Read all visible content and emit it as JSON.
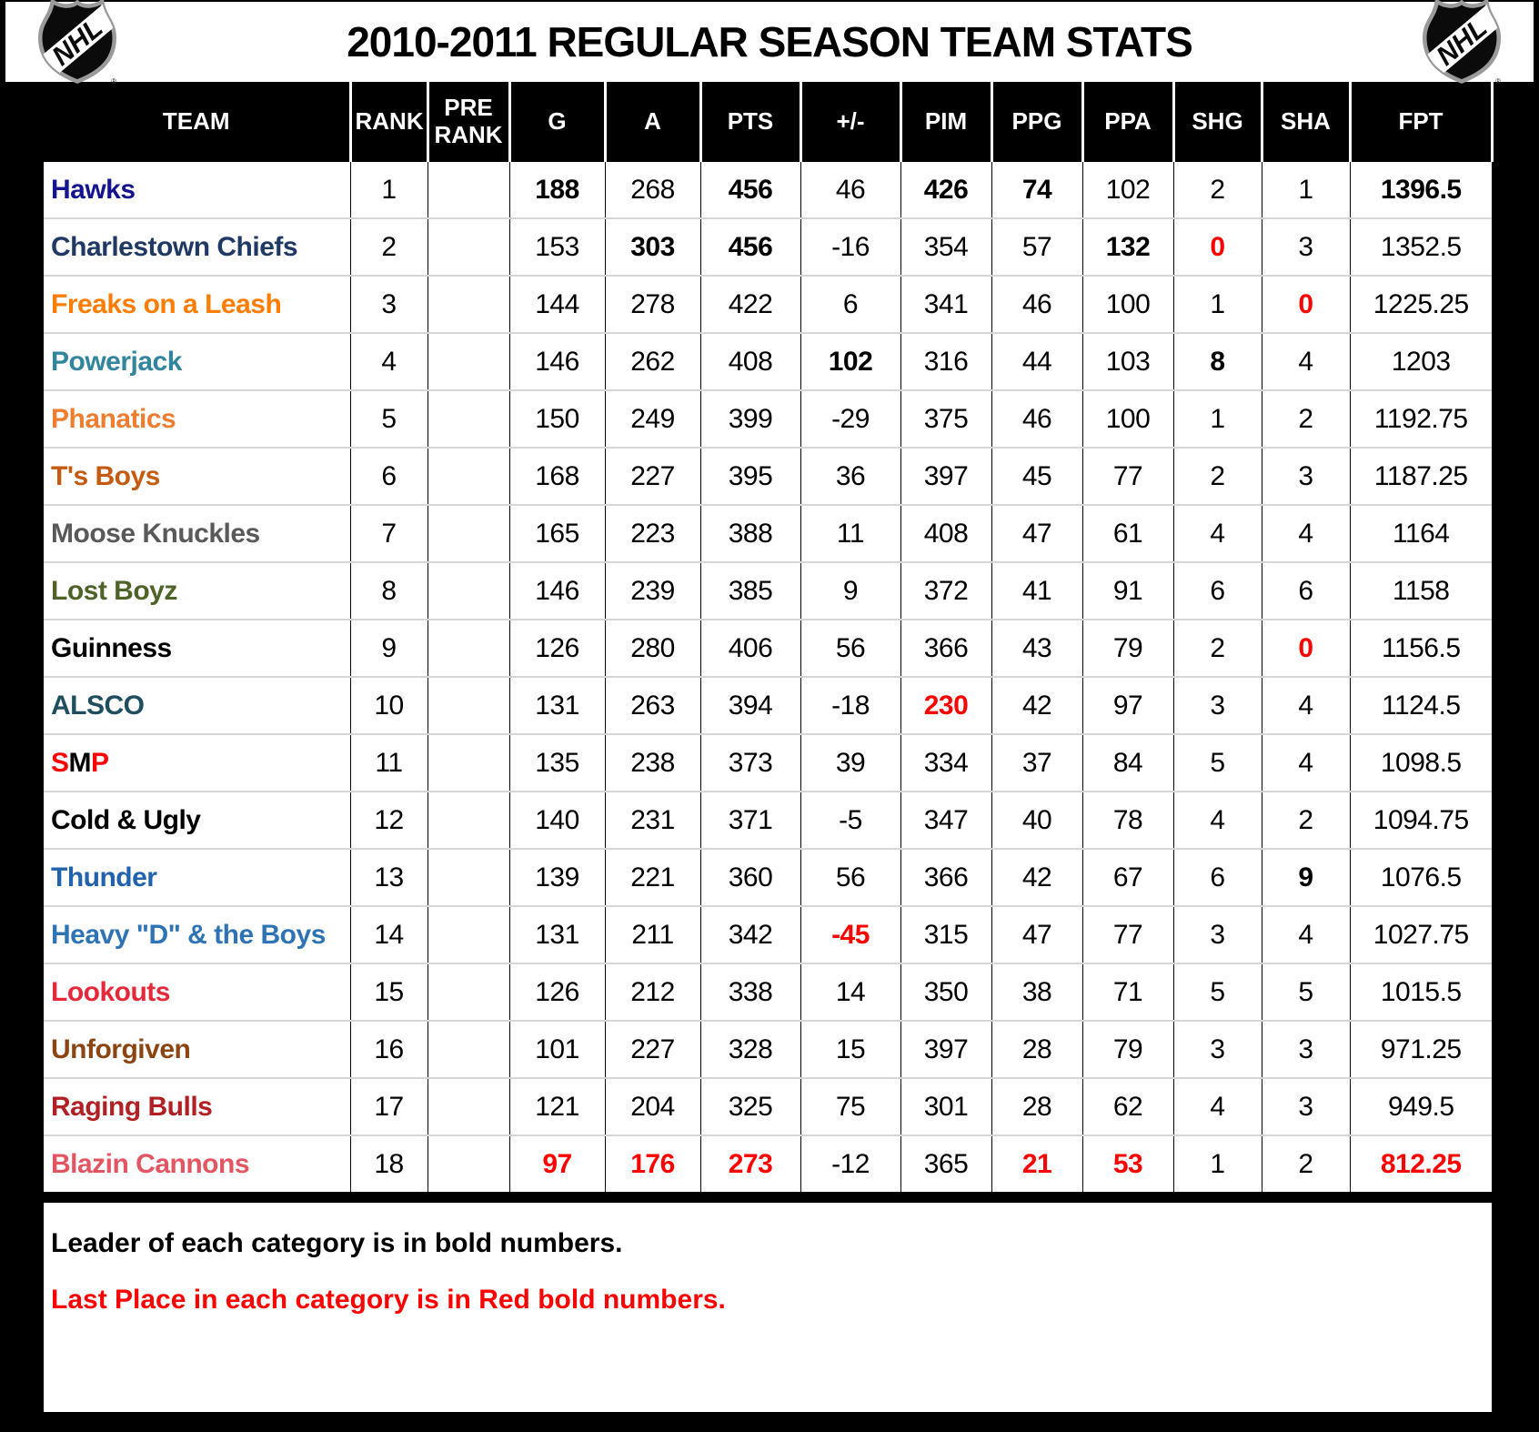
{
  "header": {
    "title": "2010-2011 REGULAR SEASON TEAM STATS",
    "left_logo": "nhl-shield",
    "right_logo": "nhl-shield"
  },
  "table": {
    "columns": [
      "TEAM",
      "RANK",
      "PRE RANK",
      "G",
      "A",
      "PTS",
      "+/-",
      "PIM",
      "PPG",
      "PPA",
      "SHG",
      "SHA",
      "FPT"
    ],
    "rows": [
      {
        "team": [
          {
            "t": "Hawks",
            "c": "#14148F"
          }
        ],
        "cells": [
          {
            "v": "1"
          },
          {
            "v": ""
          },
          {
            "v": "188",
            "b": 1
          },
          {
            "v": "268"
          },
          {
            "v": "456",
            "b": 1
          },
          {
            "v": "46"
          },
          {
            "v": "426",
            "b": 1
          },
          {
            "v": "74",
            "b": 1
          },
          {
            "v": "102"
          },
          {
            "v": "2"
          },
          {
            "v": "1"
          },
          {
            "v": "1396.5",
            "b": 1
          }
        ]
      },
      {
        "team": [
          {
            "t": "Charlestown Chiefs",
            "c": "#1F3864"
          }
        ],
        "cells": [
          {
            "v": "2"
          },
          {
            "v": ""
          },
          {
            "v": "153"
          },
          {
            "v": "303",
            "b": 1
          },
          {
            "v": "456",
            "b": 1
          },
          {
            "v": "-16"
          },
          {
            "v": "354"
          },
          {
            "v": "57"
          },
          {
            "v": "132",
            "b": 1
          },
          {
            "v": "0",
            "r": 1
          },
          {
            "v": "3"
          },
          {
            "v": "1352.5"
          }
        ]
      },
      {
        "team": [
          {
            "t": "Freaks on a Leash",
            "c": "#FF7D00"
          }
        ],
        "cells": [
          {
            "v": "3"
          },
          {
            "v": ""
          },
          {
            "v": "144"
          },
          {
            "v": "278"
          },
          {
            "v": "422"
          },
          {
            "v": "6"
          },
          {
            "v": "341"
          },
          {
            "v": "46"
          },
          {
            "v": "100"
          },
          {
            "v": "1"
          },
          {
            "v": "0",
            "r": 1
          },
          {
            "v": "1225.25"
          }
        ]
      },
      {
        "team": [
          {
            "t": "Powerjack",
            "c": "#31859C"
          }
        ],
        "cells": [
          {
            "v": "4"
          },
          {
            "v": ""
          },
          {
            "v": "146"
          },
          {
            "v": "262"
          },
          {
            "v": "408"
          },
          {
            "v": "102",
            "b": 1
          },
          {
            "v": "316"
          },
          {
            "v": "44"
          },
          {
            "v": "103"
          },
          {
            "v": "8",
            "b": 1
          },
          {
            "v": "4"
          },
          {
            "v": "1203"
          }
        ]
      },
      {
        "team": [
          {
            "t": "Phanatics",
            "c": "#ED7D31"
          }
        ],
        "cells": [
          {
            "v": "5"
          },
          {
            "v": ""
          },
          {
            "v": "150"
          },
          {
            "v": "249"
          },
          {
            "v": "399"
          },
          {
            "v": "-29"
          },
          {
            "v": "375"
          },
          {
            "v": "46"
          },
          {
            "v": "100"
          },
          {
            "v": "1"
          },
          {
            "v": "2"
          },
          {
            "v": "1192.75"
          }
        ]
      },
      {
        "team": [
          {
            "t": "T's Boys",
            "c": "#C55A11"
          }
        ],
        "cells": [
          {
            "v": "6"
          },
          {
            "v": ""
          },
          {
            "v": "168"
          },
          {
            "v": "227"
          },
          {
            "v": "395"
          },
          {
            "v": "36"
          },
          {
            "v": "397"
          },
          {
            "v": "45"
          },
          {
            "v": "77"
          },
          {
            "v": "2"
          },
          {
            "v": "3"
          },
          {
            "v": "1187.25"
          }
        ]
      },
      {
        "team": [
          {
            "t": "Moose Knuckles",
            "c": "#595959"
          }
        ],
        "cells": [
          {
            "v": "7"
          },
          {
            "v": ""
          },
          {
            "v": "165"
          },
          {
            "v": "223"
          },
          {
            "v": "388"
          },
          {
            "v": "11"
          },
          {
            "v": "408"
          },
          {
            "v": "47"
          },
          {
            "v": "61"
          },
          {
            "v": "4"
          },
          {
            "v": "4"
          },
          {
            "v": "1164"
          }
        ]
      },
      {
        "team": [
          {
            "t": "Lost Boyz",
            "c": "#4F6228"
          }
        ],
        "cells": [
          {
            "v": "8"
          },
          {
            "v": ""
          },
          {
            "v": "146"
          },
          {
            "v": "239"
          },
          {
            "v": "385"
          },
          {
            "v": "9"
          },
          {
            "v": "372"
          },
          {
            "v": "41"
          },
          {
            "v": "91"
          },
          {
            "v": "6"
          },
          {
            "v": "6"
          },
          {
            "v": "1158"
          }
        ]
      },
      {
        "team": [
          {
            "t": "Guinness",
            "c": "#000000"
          }
        ],
        "cells": [
          {
            "v": "9"
          },
          {
            "v": ""
          },
          {
            "v": "126"
          },
          {
            "v": "280"
          },
          {
            "v": "406"
          },
          {
            "v": "56"
          },
          {
            "v": "366"
          },
          {
            "v": "43"
          },
          {
            "v": "79"
          },
          {
            "v": "2"
          },
          {
            "v": "0",
            "r": 1
          },
          {
            "v": "1156.5"
          }
        ]
      },
      {
        "team": [
          {
            "t": "ALSCO",
            "c": "#1F4E5F"
          }
        ],
        "cells": [
          {
            "v": "10"
          },
          {
            "v": ""
          },
          {
            "v": "131"
          },
          {
            "v": "263"
          },
          {
            "v": "394"
          },
          {
            "v": "-18"
          },
          {
            "v": "230",
            "r": 1
          },
          {
            "v": "42"
          },
          {
            "v": "97"
          },
          {
            "v": "3"
          },
          {
            "v": "4"
          },
          {
            "v": "1124.5"
          }
        ]
      },
      {
        "team": [
          {
            "t": "S",
            "c": "#FF0000"
          },
          {
            "t": "M",
            "c": "#000000"
          },
          {
            "t": "P",
            "c": "#FF0000"
          }
        ],
        "cells": [
          {
            "v": "11"
          },
          {
            "v": ""
          },
          {
            "v": "135"
          },
          {
            "v": "238"
          },
          {
            "v": "373"
          },
          {
            "v": "39"
          },
          {
            "v": "334"
          },
          {
            "v": "37"
          },
          {
            "v": "84"
          },
          {
            "v": "5"
          },
          {
            "v": "4"
          },
          {
            "v": "1098.5"
          }
        ]
      },
      {
        "team": [
          {
            "t": "Cold & Ugly",
            "c": "#000000"
          }
        ],
        "cells": [
          {
            "v": "12"
          },
          {
            "v": ""
          },
          {
            "v": "140"
          },
          {
            "v": "231"
          },
          {
            "v": "371"
          },
          {
            "v": "-5"
          },
          {
            "v": "347"
          },
          {
            "v": "40"
          },
          {
            "v": "78"
          },
          {
            "v": "4"
          },
          {
            "v": "2"
          },
          {
            "v": "1094.75"
          }
        ]
      },
      {
        "team": [
          {
            "t": "Thunder",
            "c": "#2062AE"
          }
        ],
        "cells": [
          {
            "v": "13"
          },
          {
            "v": ""
          },
          {
            "v": "139"
          },
          {
            "v": "221"
          },
          {
            "v": "360"
          },
          {
            "v": "56"
          },
          {
            "v": "366"
          },
          {
            "v": "42"
          },
          {
            "v": "67"
          },
          {
            "v": "6"
          },
          {
            "v": "9",
            "b": 1
          },
          {
            "v": "1076.5"
          }
        ]
      },
      {
        "team": [
          {
            "t": "Heavy \"D\" & the Boys",
            "c": "#2E74B5"
          }
        ],
        "cells": [
          {
            "v": "14"
          },
          {
            "v": ""
          },
          {
            "v": "131"
          },
          {
            "v": "211"
          },
          {
            "v": "342"
          },
          {
            "v": "-45",
            "r": 1
          },
          {
            "v": "315"
          },
          {
            "v": "47"
          },
          {
            "v": "77"
          },
          {
            "v": "3"
          },
          {
            "v": "4"
          },
          {
            "v": "1027.75"
          }
        ]
      },
      {
        "team": [
          {
            "t": "Lookouts",
            "c": "#E4293B"
          }
        ],
        "cells": [
          {
            "v": "15"
          },
          {
            "v": ""
          },
          {
            "v": "126"
          },
          {
            "v": "212"
          },
          {
            "v": "338"
          },
          {
            "v": "14"
          },
          {
            "v": "350"
          },
          {
            "v": "38"
          },
          {
            "v": "71"
          },
          {
            "v": "5"
          },
          {
            "v": "5"
          },
          {
            "v": "1015.5"
          }
        ]
      },
      {
        "team": [
          {
            "t": "Unforgiven",
            "c": "#8B4513"
          }
        ],
        "cells": [
          {
            "v": "16"
          },
          {
            "v": ""
          },
          {
            "v": "101"
          },
          {
            "v": "227"
          },
          {
            "v": "328"
          },
          {
            "v": "15"
          },
          {
            "v": "397"
          },
          {
            "v": "28"
          },
          {
            "v": "79"
          },
          {
            "v": "3"
          },
          {
            "v": "3"
          },
          {
            "v": "971.25"
          }
        ]
      },
      {
        "team": [
          {
            "t": "Raging Bulls",
            "c": "#B02024"
          }
        ],
        "cells": [
          {
            "v": "17"
          },
          {
            "v": ""
          },
          {
            "v": "121"
          },
          {
            "v": "204"
          },
          {
            "v": "325"
          },
          {
            "v": "75"
          },
          {
            "v": "301"
          },
          {
            "v": "28"
          },
          {
            "v": "62"
          },
          {
            "v": "4"
          },
          {
            "v": "3"
          },
          {
            "v": "949.5"
          }
        ]
      },
      {
        "team": [
          {
            "t": "Blazin Cannons",
            "c": "#E25563"
          }
        ],
        "cells": [
          {
            "v": "18"
          },
          {
            "v": ""
          },
          {
            "v": "97",
            "r": 1
          },
          {
            "v": "176",
            "r": 1
          },
          {
            "v": "273",
            "r": 1
          },
          {
            "v": "-12"
          },
          {
            "v": "365"
          },
          {
            "v": "21",
            "r": 1
          },
          {
            "v": "53",
            "r": 1
          },
          {
            "v": "1"
          },
          {
            "v": "2"
          },
          {
            "v": "812.25",
            "r": 1
          }
        ]
      }
    ]
  },
  "notes": {
    "leader": {
      "text": "Leader of each category is in bold numbers.",
      "color": "#000000"
    },
    "last_place": {
      "text": "Last Place in each category is in Red bold numbers.",
      "color": "#FF0000"
    }
  },
  "legend_colors": {
    "leader_bold": "#000000",
    "last_place_red": "#FF0000"
  }
}
